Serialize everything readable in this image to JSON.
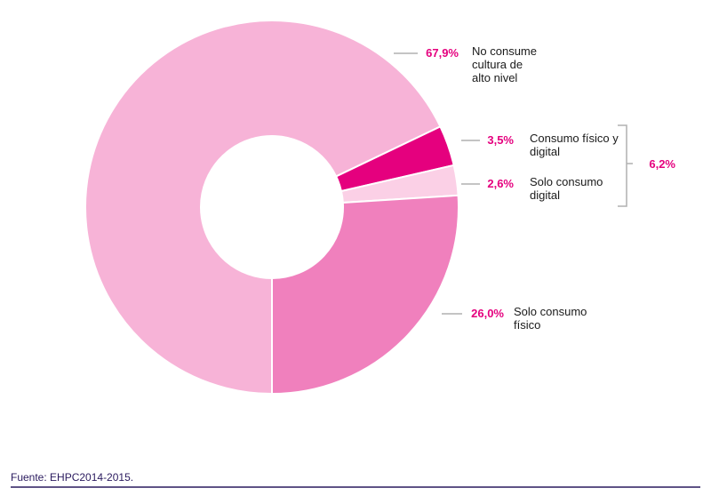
{
  "chart_data": {
    "type": "pie",
    "donut": true,
    "categories": [
      "No consume cultura de alto nivel",
      "Consumo físico y digital",
      "Solo consumo digital",
      "Solo consumo físico"
    ],
    "values": [
      67.9,
      3.5,
      2.6,
      26.0
    ],
    "value_labels": [
      "67,9%",
      "3,5%",
      "2,6%",
      "26,0%"
    ],
    "colors": [
      "#f7b3d7",
      "#e5007e",
      "#fbd0e6",
      "#f080bd"
    ],
    "annotations": [
      {
        "text": "6,2%"
      }
    ],
    "source": "Fuente: EHPC2014-2015."
  }
}
